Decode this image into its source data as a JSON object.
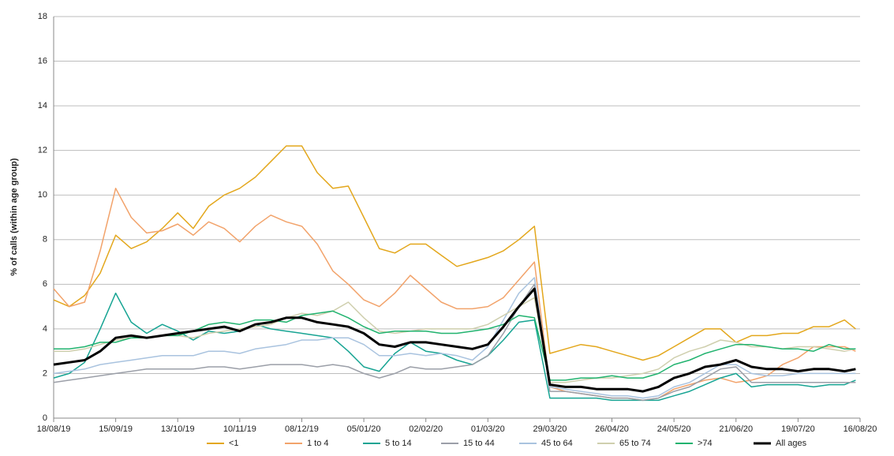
{
  "chart_data": {
    "type": "line",
    "y_label": "% of calls (within age group)",
    "x": [
      "18/08/19",
      "25/08/19",
      "01/09/19",
      "08/09/19",
      "15/09/19",
      "22/09/19",
      "29/09/19",
      "06/10/19",
      "13/10/19",
      "20/10/19",
      "27/10/19",
      "03/11/19",
      "10/11/19",
      "17/11/19",
      "24/11/19",
      "01/12/19",
      "08/12/19",
      "15/12/19",
      "22/12/19",
      "29/12/19",
      "05/01/20",
      "12/01/20",
      "19/01/20",
      "26/01/20",
      "02/02/20",
      "09/02/20",
      "16/02/20",
      "23/02/20",
      "01/03/20",
      "08/03/20",
      "15/03/20",
      "22/03/20",
      "29/03/20",
      "05/04/20",
      "12/04/20",
      "19/04/20",
      "26/04/20",
      "03/05/20",
      "10/05/20",
      "17/05/20",
      "24/05/20",
      "31/05/20",
      "07/06/20",
      "14/06/20",
      "21/06/20",
      "28/06/20",
      "05/07/20",
      "12/07/20",
      "19/07/20",
      "26/07/20",
      "02/08/20",
      "09/08/20",
      "14/08/20"
    ],
    "xlim": [
      "18/08/19",
      "16/08/20"
    ],
    "xticks": [
      "18/08/19",
      "15/09/19",
      "13/10/19",
      "10/11/19",
      "08/12/19",
      "05/01/20",
      "02/02/20",
      "01/03/20",
      "29/03/20",
      "26/04/20",
      "24/05/20",
      "21/06/20",
      "19/07/20",
      "16/08/20"
    ],
    "ylim": [
      0,
      18
    ],
    "yticks": [
      0,
      2,
      4,
      6,
      8,
      10,
      12,
      14,
      16,
      18
    ],
    "grid": true,
    "legend": "bottom",
    "series": [
      {
        "name": "<1",
        "color": "#e3a71c",
        "values": [
          5.3,
          5.0,
          5.5,
          6.5,
          8.2,
          7.6,
          7.9,
          8.5,
          9.2,
          8.5,
          9.5,
          10.0,
          10.3,
          10.8,
          11.5,
          12.2,
          12.2,
          11.0,
          10.3,
          10.4,
          9.0,
          7.6,
          7.4,
          7.8,
          7.8,
          7.3,
          6.8,
          7.0,
          7.2,
          7.5,
          8.0,
          8.6,
          2.9,
          3.1,
          3.3,
          3.2,
          3.0,
          2.8,
          2.6,
          2.8,
          3.2,
          3.6,
          4.0,
          4.0,
          3.4,
          3.7,
          3.7,
          3.8,
          3.8,
          4.1,
          4.1,
          4.4,
          4.0
        ]
      },
      {
        "name": "1 to 4",
        "color": "#f2a36b",
        "values": [
          5.8,
          5.0,
          5.2,
          7.5,
          10.3,
          9.0,
          8.3,
          8.4,
          8.7,
          8.2,
          8.8,
          8.5,
          7.9,
          8.6,
          9.1,
          8.8,
          8.6,
          7.8,
          6.6,
          6.0,
          5.3,
          5.0,
          5.6,
          6.4,
          5.8,
          5.2,
          4.9,
          4.9,
          5.0,
          5.4,
          6.2,
          7.0,
          1.4,
          1.2,
          1.1,
          1.0,
          0.9,
          0.9,
          0.8,
          0.9,
          1.3,
          1.5,
          1.7,
          1.8,
          1.6,
          1.7,
          1.9,
          2.4,
          2.7,
          3.2,
          3.2,
          3.2,
          3.0
        ]
      },
      {
        "name": "5 to 14",
        "color": "#17a493",
        "values": [
          1.8,
          2.0,
          2.5,
          4.0,
          5.6,
          4.3,
          3.8,
          4.2,
          3.9,
          3.5,
          3.9,
          3.8,
          3.9,
          4.2,
          4.0,
          3.9,
          3.8,
          3.7,
          3.6,
          3.0,
          2.3,
          2.1,
          2.9,
          3.4,
          3.0,
          2.9,
          2.6,
          2.4,
          2.8,
          3.5,
          4.3,
          4.4,
          0.9,
          0.9,
          0.9,
          0.9,
          0.8,
          0.8,
          0.8,
          0.8,
          1.0,
          1.2,
          1.5,
          1.8,
          2.0,
          1.4,
          1.5,
          1.5,
          1.5,
          1.4,
          1.5,
          1.5,
          1.7
        ]
      },
      {
        "name": "15 to 44",
        "color": "#9b9fa8",
        "values": [
          1.6,
          1.7,
          1.8,
          1.9,
          2.0,
          2.1,
          2.2,
          2.2,
          2.2,
          2.2,
          2.3,
          2.3,
          2.2,
          2.3,
          2.4,
          2.4,
          2.4,
          2.3,
          2.4,
          2.3,
          2.0,
          1.8,
          2.0,
          2.3,
          2.2,
          2.2,
          2.3,
          2.4,
          2.8,
          3.8,
          5.0,
          6.0,
          1.2,
          1.2,
          1.1,
          1.0,
          0.9,
          0.9,
          0.8,
          0.9,
          1.2,
          1.4,
          1.8,
          2.2,
          2.3,
          1.6,
          1.6,
          1.6,
          1.6,
          1.6,
          1.6,
          1.6,
          1.6
        ]
      },
      {
        "name": "45 to 64",
        "color": "#a9c3df",
        "values": [
          2.0,
          2.1,
          2.2,
          2.4,
          2.5,
          2.6,
          2.7,
          2.8,
          2.8,
          2.8,
          3.0,
          3.0,
          2.9,
          3.1,
          3.2,
          3.3,
          3.5,
          3.5,
          3.6,
          3.6,
          3.3,
          2.8,
          2.8,
          2.9,
          2.8,
          2.9,
          2.8,
          2.6,
          3.2,
          4.4,
          5.6,
          6.3,
          1.4,
          1.3,
          1.2,
          1.1,
          1.0,
          1.0,
          0.9,
          1.0,
          1.4,
          1.6,
          2.0,
          2.4,
          2.4,
          2.0,
          1.9,
          1.9,
          2.0,
          2.0,
          2.0,
          2.0,
          2.0
        ]
      },
      {
        "name": "65 to 74",
        "color": "#cfcfae",
        "values": [
          3.0,
          3.0,
          3.1,
          3.3,
          3.5,
          3.6,
          3.6,
          3.7,
          3.7,
          3.6,
          3.8,
          3.9,
          4.0,
          4.1,
          4.2,
          4.5,
          4.7,
          4.6,
          4.8,
          5.2,
          4.5,
          3.9,
          3.8,
          3.9,
          4.0,
          4.0,
          4.0,
          4.0,
          4.2,
          4.6,
          5.0,
          5.4,
          1.6,
          1.6,
          1.7,
          1.8,
          1.8,
          1.9,
          2.0,
          2.2,
          2.7,
          3.0,
          3.2,
          3.5,
          3.4,
          3.2,
          3.2,
          3.1,
          3.2,
          3.2,
          3.1,
          3.0,
          3.1
        ]
      },
      {
        "name": ">74",
        "color": "#21b36f",
        "values": [
          3.1,
          3.1,
          3.2,
          3.4,
          3.4,
          3.6,
          3.6,
          3.7,
          3.7,
          3.9,
          4.2,
          4.3,
          4.2,
          4.4,
          4.4,
          4.3,
          4.6,
          4.7,
          4.8,
          4.5,
          4.1,
          3.8,
          3.9,
          3.9,
          3.9,
          3.8,
          3.8,
          3.9,
          4.0,
          4.2,
          4.6,
          4.5,
          1.7,
          1.7,
          1.8,
          1.8,
          1.9,
          1.8,
          1.8,
          2.0,
          2.4,
          2.6,
          2.9,
          3.1,
          3.3,
          3.3,
          3.2,
          3.1,
          3.1,
          3.0,
          3.3,
          3.1,
          3.1
        ]
      },
      {
        "name": "All ages",
        "color": "#000000",
        "values": [
          2.4,
          2.5,
          2.6,
          3.0,
          3.6,
          3.7,
          3.6,
          3.7,
          3.8,
          3.9,
          4.0,
          4.1,
          3.9,
          4.2,
          4.3,
          4.5,
          4.5,
          4.3,
          4.2,
          4.1,
          3.8,
          3.3,
          3.2,
          3.4,
          3.4,
          3.3,
          3.2,
          3.1,
          3.3,
          4.1,
          5.0,
          5.8,
          1.5,
          1.4,
          1.4,
          1.3,
          1.3,
          1.3,
          1.2,
          1.4,
          1.8,
          2.0,
          2.3,
          2.4,
          2.6,
          2.3,
          2.2,
          2.2,
          2.1,
          2.2,
          2.2,
          2.1,
          2.2
        ]
      }
    ]
  }
}
